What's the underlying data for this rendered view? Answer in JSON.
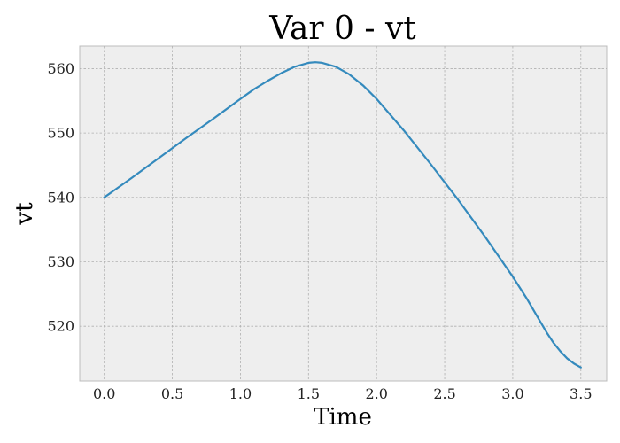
{
  "chart_data": {
    "type": "line",
    "title": "Var 0 - vt",
    "xlabel": "Time",
    "ylabel": "vt",
    "xlim": [
      -0.18,
      3.69
    ],
    "ylim": [
      511.5,
      563.5
    ],
    "xticks": [
      0.0,
      0.5,
      1.0,
      1.5,
      2.0,
      2.5,
      3.0,
      3.5
    ],
    "xtick_labels": [
      "0.0",
      "0.5",
      "1.0",
      "1.5",
      "2.0",
      "2.5",
      "3.0",
      "3.5"
    ],
    "yticks": [
      520,
      530,
      540,
      550,
      560
    ],
    "ytick_labels": [
      "520",
      "530",
      "540",
      "550",
      "560"
    ],
    "grid": true,
    "colors": {
      "series": "#348abd",
      "plot_background": "#eeeeee"
    },
    "series": [
      {
        "color": "#348abd",
        "x": [
          0.0,
          0.2,
          0.4,
          0.6,
          0.8,
          1.0,
          1.1,
          1.2,
          1.3,
          1.4,
          1.5,
          1.55,
          1.6,
          1.7,
          1.8,
          1.9,
          2.0,
          2.2,
          2.4,
          2.6,
          2.8,
          3.0,
          3.1,
          3.2,
          3.25,
          3.3,
          3.35,
          3.4,
          3.45,
          3.5
        ],
        "y": [
          540.0,
          543.0,
          546.1,
          549.2,
          552.2,
          555.3,
          556.8,
          558.1,
          559.3,
          560.3,
          560.9,
          561.0,
          560.9,
          560.3,
          559.1,
          557.4,
          555.3,
          550.4,
          545.1,
          539.6,
          533.8,
          527.7,
          524.4,
          520.8,
          519.0,
          517.4,
          516.1,
          515.0,
          514.2,
          513.6
        ]
      }
    ]
  }
}
